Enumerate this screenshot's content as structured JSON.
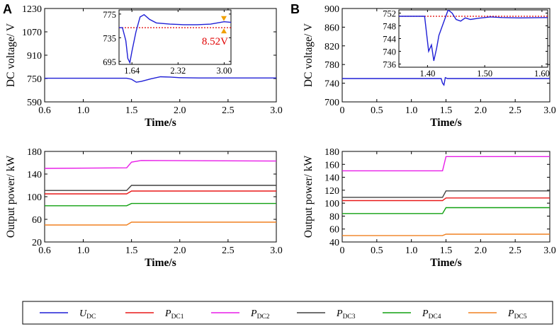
{
  "panel_labels": [
    "A",
    "B"
  ],
  "chart_data": [
    {
      "id": "A-top",
      "type": "line",
      "title": "",
      "xlabel": "Time/s",
      "ylabel": "DC voltage/ V",
      "xlim": [
        0.6,
        3.0
      ],
      "ylim": [
        590,
        1230
      ],
      "xticks": [
        0.6,
        1.0,
        1.5,
        2.0,
        2.5,
        3.0
      ],
      "xtick_labels": [
        "0.6",
        "1.0",
        "1.5",
        "2.0",
        "2.5",
        "3.0"
      ],
      "yticks": [
        590,
        750,
        910,
        1070,
        1230
      ],
      "ytick_labels": [
        "590",
        "750",
        "910",
        "1070",
        "1230"
      ],
      "series": [
        {
          "name": "U_DC",
          "color": "#1f1fd6",
          "x": [
            0.6,
            1.45,
            1.5,
            1.55,
            1.6,
            1.7,
            1.8,
            1.9,
            2.0,
            2.2,
            2.5,
            3.0
          ],
          "y": [
            752,
            752,
            745,
            725,
            730,
            748,
            762,
            760,
            756,
            754,
            754,
            754
          ]
        }
      ],
      "inset": {
        "xlim": [
          1.45,
          3.1
        ],
        "ylim": [
          690,
          782
        ],
        "xticks": [
          1.64,
          2.32,
          3.0
        ],
        "xtick_labels": [
          "1.64",
          "2.32",
          "3.00"
        ],
        "yticks": [
          695,
          735,
          775
        ],
        "ytick_labels": [
          "695",
          "735",
          "775"
        ],
        "series": [
          {
            "name": "U_DC",
            "color": "#1f1fd6",
            "x": [
              1.45,
              1.5,
              1.55,
              1.58,
              1.61,
              1.64,
              1.7,
              1.76,
              1.82,
              1.9,
              2.0,
              2.2,
              2.4,
              2.6,
              2.8,
              3.0,
              3.1
            ],
            "y": [
              752,
              752,
              730,
              700,
              693,
              712,
              745,
              770,
              774,
              766,
              760,
              758,
              757,
              757,
              758,
              762,
              761
            ]
          }
        ],
        "reference_line": {
          "y": 752,
          "color": "#e00000"
        },
        "annotation": "8.52V"
      }
    },
    {
      "id": "A-bottom",
      "type": "line",
      "title": "",
      "xlabel": "Time/s",
      "ylabel": "Output power/ kW",
      "xlim": [
        0.6,
        3.0
      ],
      "ylim": [
        20,
        180
      ],
      "xticks": [
        0.6,
        1.0,
        1.5,
        2.0,
        2.5,
        3.0
      ],
      "xtick_labels": [
        "0.6",
        "1.0",
        "1.5",
        "2.0",
        "2.5",
        "3.0"
      ],
      "yticks": [
        20,
        60,
        100,
        140,
        180
      ],
      "ytick_labels": [
        "20",
        "60",
        "100",
        "140",
        "180"
      ],
      "series": [
        {
          "name": "P_DC1",
          "color": "#e81818",
          "x": [
            0.6,
            1.45,
            1.5,
            3.0
          ],
          "y": [
            105,
            105,
            110,
            110
          ]
        },
        {
          "name": "P_DC2",
          "color": "#e81ce8",
          "x": [
            0.6,
            1.45,
            1.5,
            1.6,
            3.0
          ],
          "y": [
            150,
            151,
            161,
            164,
            163
          ]
        },
        {
          "name": "P_DC3",
          "color": "#404040",
          "x": [
            0.6,
            1.45,
            1.5,
            3.0
          ],
          "y": [
            111,
            111,
            120,
            120
          ]
        },
        {
          "name": "P_DC4",
          "color": "#10a010",
          "x": [
            0.6,
            1.45,
            1.5,
            3.0
          ],
          "y": [
            84,
            84,
            88,
            88
          ]
        },
        {
          "name": "P_DC5",
          "color": "#f08020",
          "x": [
            0.6,
            1.45,
            1.5,
            3.0
          ],
          "y": [
            50,
            50,
            55,
            55
          ]
        }
      ]
    },
    {
      "id": "B-top",
      "type": "line",
      "title": "",
      "xlabel": "Time/s",
      "ylabel": "DC voltage/ V",
      "xlim": [
        0,
        3.0
      ],
      "ylim": [
        700,
        900
      ],
      "xticks": [
        0,
        0.5,
        1.0,
        1.5,
        2.0,
        2.5,
        3.0
      ],
      "xtick_labels": [
        "0",
        "0.5",
        "1.0",
        "1.5",
        "2.0",
        "2.5",
        "3.0"
      ],
      "yticks": [
        700,
        740,
        780,
        820,
        860,
        900
      ],
      "ytick_labels": [
        "700",
        "740",
        "780",
        "820",
        "860",
        "900"
      ],
      "series": [
        {
          "name": "U_DC",
          "color": "#1f1fd6",
          "x": [
            0,
            1.43,
            1.45,
            1.47,
            1.49,
            1.52,
            3.0
          ],
          "y": [
            750,
            750,
            740,
            736,
            752,
            750,
            750
          ]
        }
      ],
      "inset": {
        "xlim": [
          1.35,
          1.61
        ],
        "ylim": [
          735,
          753
        ],
        "xticks": [
          1.4,
          1.5,
          1.6
        ],
        "xtick_labels": [
          "1.40",
          "1.50",
          "1.60"
        ],
        "yticks": [
          736,
          740,
          744,
          748,
          752
        ],
        "ytick_labels": [
          "736",
          "740",
          "744",
          "748",
          "752"
        ],
        "series": [
          {
            "name": "U_DC",
            "color": "#1f1fd6",
            "x": [
              1.35,
              1.395,
              1.402,
              1.407,
              1.411,
              1.416,
              1.42,
              1.428,
              1.436,
              1.443,
              1.45,
              1.458,
              1.466,
              1.475,
              1.49,
              1.51,
              1.53,
              1.56,
              1.61
            ],
            "y": [
              751,
              751,
              740,
              742,
              737,
              741,
              745,
              749,
              753,
              752,
              750,
              749.5,
              750.5,
              750,
              750.4,
              750.8,
              750.6,
              750.5,
              750.6
            ]
          }
        ],
        "reference_line": {
          "y": 751,
          "color": "#e00000"
        }
      }
    },
    {
      "id": "B-bottom",
      "type": "line",
      "title": "",
      "xlabel": "Time/s",
      "ylabel": "Output power/ kW",
      "xlim": [
        0,
        3.0
      ],
      "ylim": [
        40,
        180
      ],
      "xticks": [
        0,
        0.5,
        1.0,
        1.5,
        2.0,
        2.5,
        3.0
      ],
      "xtick_labels": [
        "0",
        "0.5",
        "1.0",
        "1.5",
        "2.0",
        "2.5",
        "3.0"
      ],
      "yticks": [
        40,
        60,
        80,
        100,
        120,
        140,
        160,
        180
      ],
      "ytick_labels": [
        "40",
        "60",
        "80",
        "100",
        "120",
        "140",
        "160",
        "180"
      ],
      "series": [
        {
          "name": "P_DC1",
          "color": "#e81818",
          "x": [
            0,
            1.45,
            1.5,
            3.0
          ],
          "y": [
            104,
            104,
            108,
            108
          ]
        },
        {
          "name": "P_DC2",
          "color": "#e81ce8",
          "x": [
            0,
            1.45,
            1.5,
            3.0
          ],
          "y": [
            150,
            150,
            172,
            172
          ]
        },
        {
          "name": "P_DC3",
          "color": "#404040",
          "x": [
            0,
            1.45,
            1.5,
            3.0
          ],
          "y": [
            109,
            109,
            119,
            119
          ]
        },
        {
          "name": "P_DC4",
          "color": "#10a010",
          "x": [
            0,
            1.45,
            1.5,
            3.0
          ],
          "y": [
            84,
            84,
            93,
            93
          ]
        },
        {
          "name": "P_DC5",
          "color": "#f08020",
          "x": [
            0,
            1.45,
            1.5,
            3.0
          ],
          "y": [
            50,
            50,
            52,
            52
          ]
        }
      ]
    }
  ],
  "legend": [
    {
      "main": "U",
      "sub": "DC",
      "color": "#1f1fd6"
    },
    {
      "main": "P",
      "sub": "DC1",
      "color": "#e81818"
    },
    {
      "main": "P",
      "sub": "DC2",
      "color": "#e81ce8"
    },
    {
      "main": "P",
      "sub": "DC3",
      "color": "#404040"
    },
    {
      "main": "P",
      "sub": "DC4",
      "color": "#10a010"
    },
    {
      "main": "P",
      "sub": "DC5",
      "color": "#f08020"
    }
  ]
}
